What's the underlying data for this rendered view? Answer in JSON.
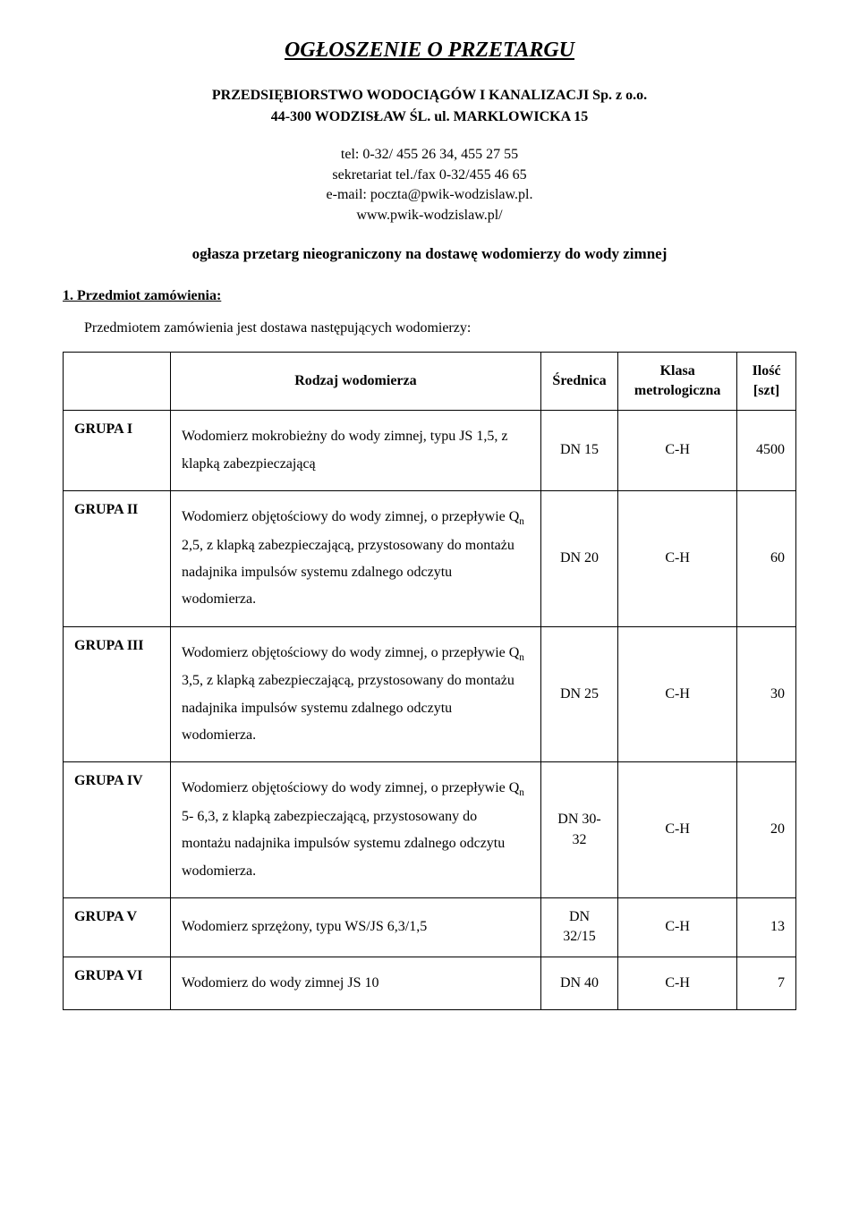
{
  "title": "OGŁOSZENIE O PRZETARGU",
  "org_line1": "PRZEDSIĘBIORSTWO WODOCIĄGÓW I KANALIZACJI Sp. z o.o.",
  "org_line2": "44-300 WODZISŁAW ŚL. ul. MARKLOWICKA 15",
  "contact_line1": "tel: 0-32/ 455 26 34, 455 27 55",
  "contact_line2": "sekretariat tel./fax 0-32/455 46 65",
  "contact_line3": "e-mail: poczta@pwik-wodzislaw.pl.",
  "contact_line4": "www.pwik-wodzislaw.pl/",
  "announce": "ogłasza przetarg nieograniczony na dostawę wodomierzy do wody zimnej",
  "section1_head": "1. Przedmiot zamówienia:",
  "section1_lead": "Przedmiotem zamówienia jest dostawa następujących wodomierzy:",
  "table": {
    "headers": {
      "h0": "",
      "h1": "Rodzaj wodomierza",
      "h2": "Średnica",
      "h3": "Klasa metrologiczna",
      "h4": "Ilość [szt]"
    },
    "rows": [
      {
        "group": "GRUPA  I",
        "desc_html": "Wodomierz  mokrobieżny do wody zimnej, typu JS 1,5, z klapką zabezpieczającą",
        "dn": "DN 15",
        "klasa": "C-H",
        "qty": "4500"
      },
      {
        "group": "GRUPA  II",
        "desc_html": "Wodomierz objętościowy do wody zimnej, o przepływie Q<span class=\"sub\">n</span> 2,5, z klapką zabezpieczającą, przystosowany do montażu nadajnika impulsów systemu zdalnego odczytu wodomierza.",
        "dn": "DN 20",
        "klasa": "C-H",
        "qty": "60"
      },
      {
        "group": "GRUPA III",
        "desc_html": "Wodomierz objętościowy do wody zimnej, o przepływie Q<span class=\"sub\">n</span> 3,5, z klapką zabezpieczającą, przystosowany do montażu nadajnika impulsów systemu zdalnego odczytu wodomierza.",
        "dn": "DN 25",
        "klasa": "C-H",
        "qty": "30"
      },
      {
        "group": "GRUPA IV",
        "desc_html": "Wodomierz objętościowy do wody zimnej, o przepływie Q<span class=\"sub\">n</span>  5- 6,3, z klapką zabezpieczającą, przystosowany do montażu nadajnika impulsów systemu zdalnego odczytu wodomierza.",
        "dn": "DN 30-32",
        "klasa": "C-H",
        "qty": "20"
      },
      {
        "group": "GRUPA V",
        "desc_html": "Wodomierz sprzężony, typu WS/JS 6,3/1,5",
        "dn": "DN 32/15",
        "klasa": "C-H",
        "qty": "13"
      },
      {
        "group": "GRUPA VI",
        "desc_html": "Wodomierz do wody zimnej JS 10",
        "dn": "DN 40",
        "klasa": "C-H",
        "qty": "7"
      }
    ]
  }
}
